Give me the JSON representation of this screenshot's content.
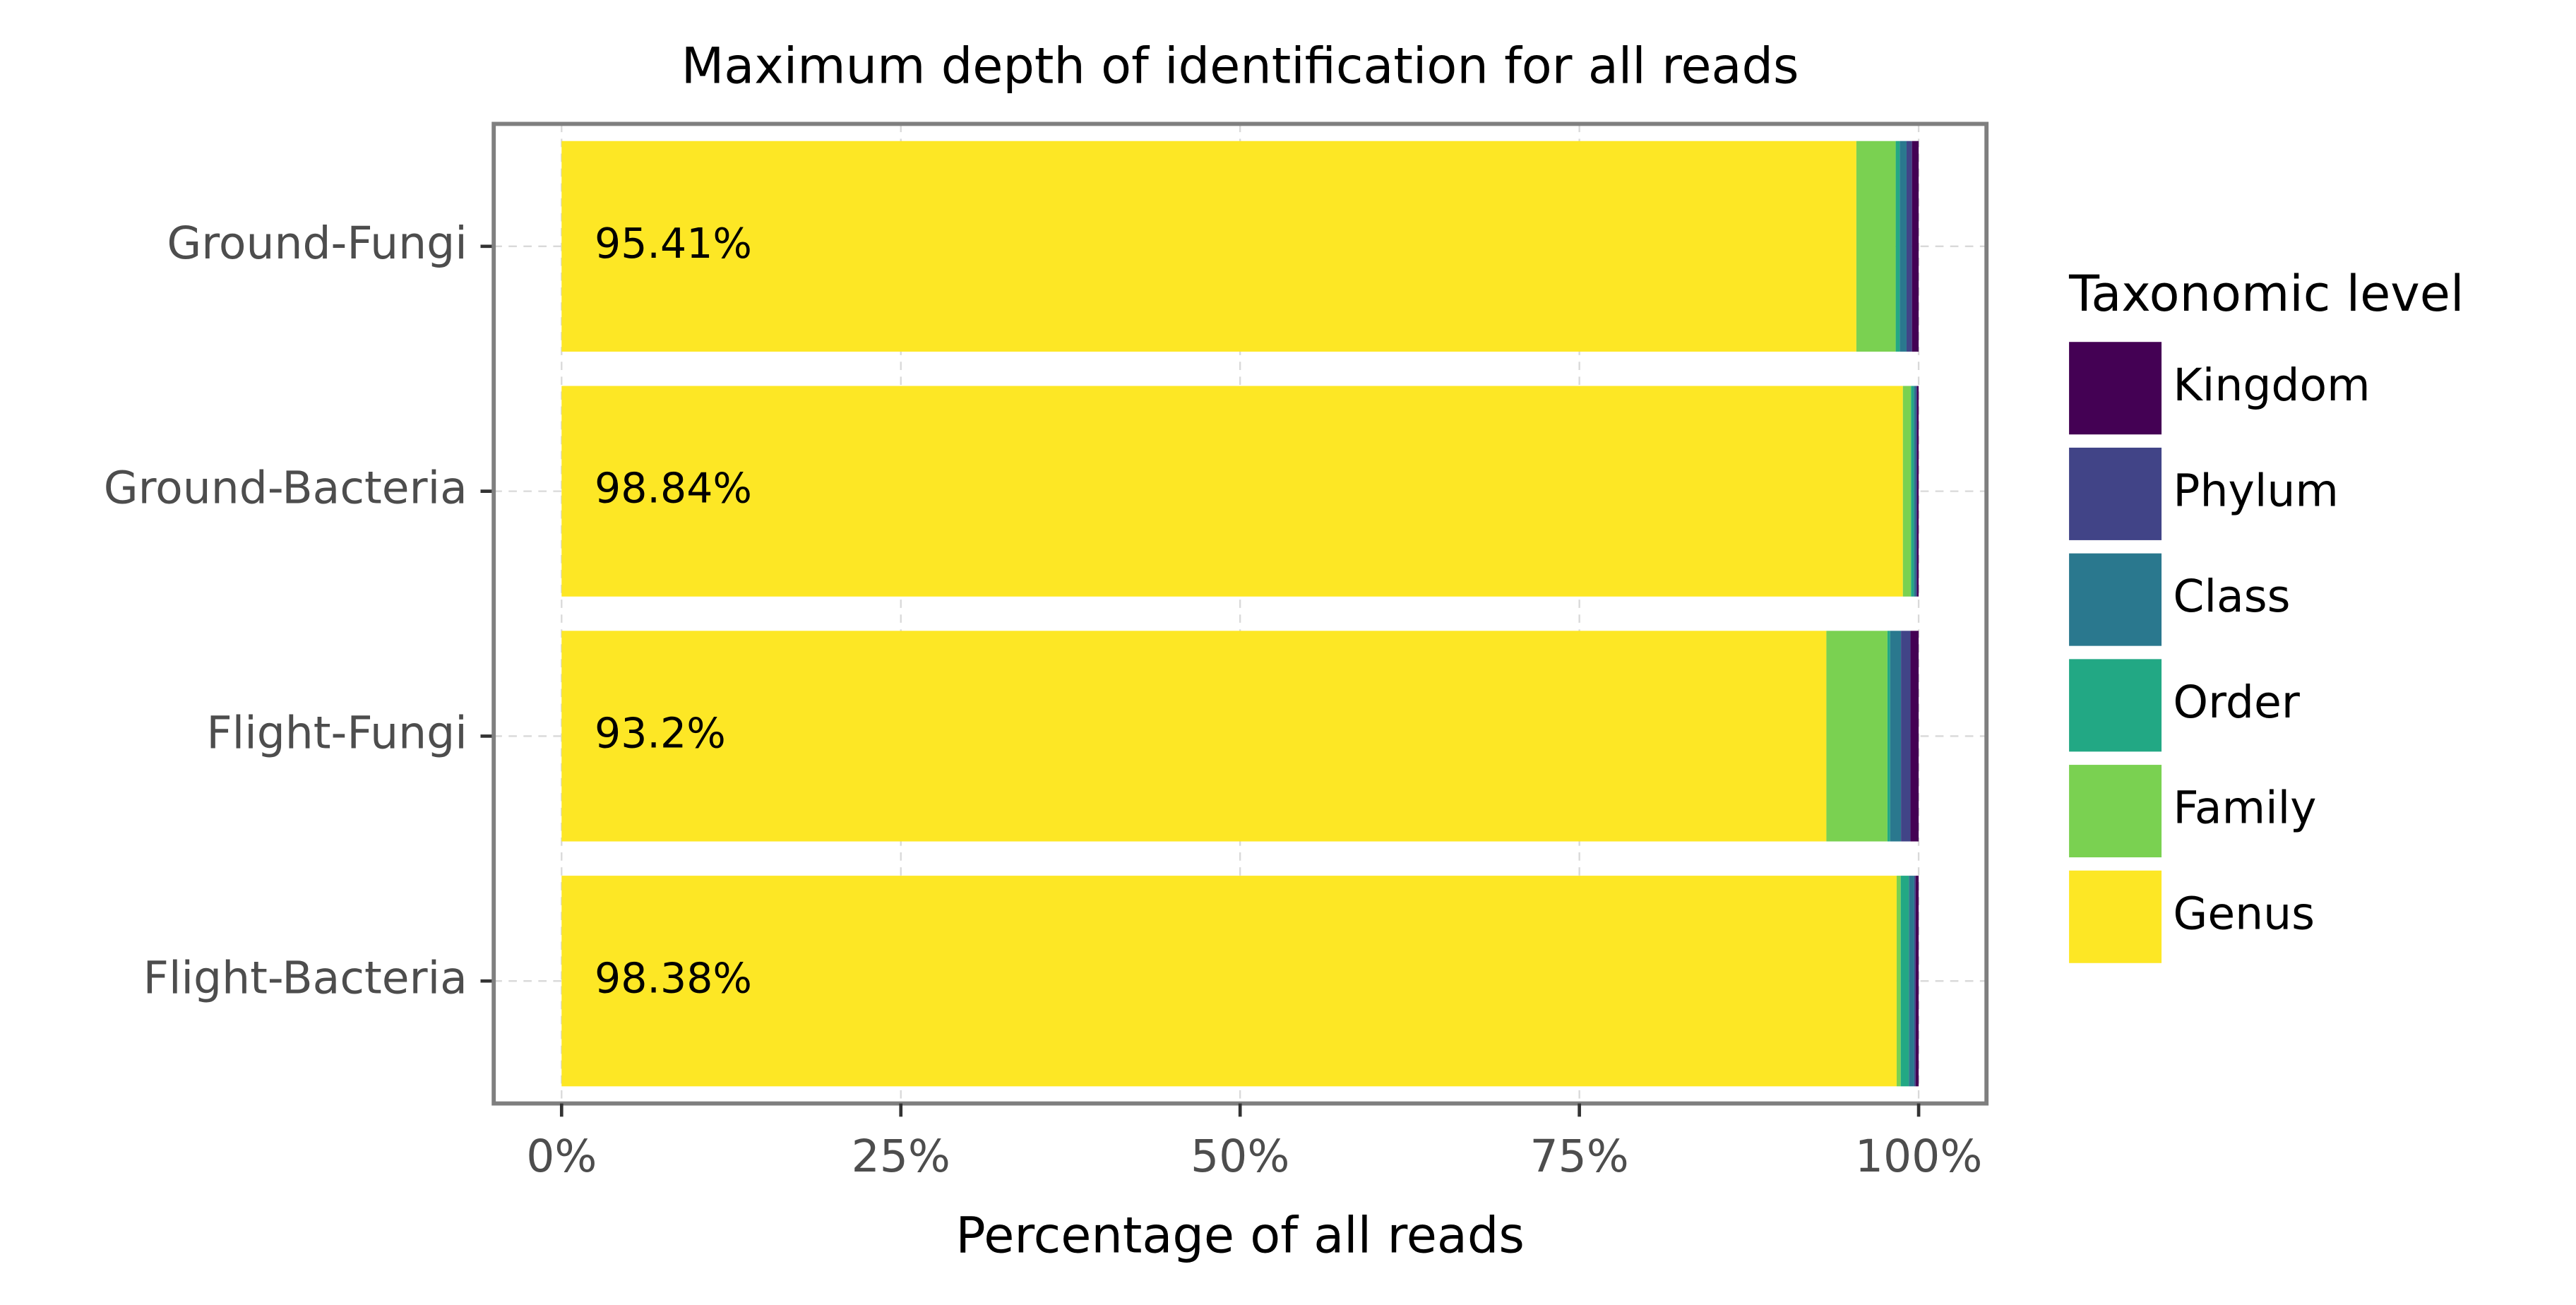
{
  "chart_data": {
    "type": "stacked-bar-horizontal",
    "title": "Maximum depth of identification for all reads",
    "x_label": "Percentage of all reads",
    "legend_title": "Taxonomic level",
    "categories": [
      "Ground-Fungi",
      "Ground-Bacteria",
      "Flight-Fungi",
      "Flight-Bacteria"
    ],
    "series": [
      {
        "name": "Genus",
        "color": "#fde725",
        "values": [
          95.41,
          98.84,
          93.2,
          98.38
        ],
        "value_labels": [
          "95.41%",
          "98.84%",
          "93.2%",
          "98.38%"
        ]
      },
      {
        "name": "Family",
        "color": "#7ad151",
        "values": [
          2.9,
          0.6,
          4.5,
          0.3
        ]
      },
      {
        "name": "Order",
        "color": "#22a884",
        "values": [
          0.3,
          0.2,
          0.2,
          0.6
        ]
      },
      {
        "name": "Class",
        "color": "#2a788e",
        "values": [
          0.5,
          0.15,
          0.8,
          0.4
        ]
      },
      {
        "name": "Phylum",
        "color": "#414487",
        "values": [
          0.4,
          0.1,
          0.7,
          0.1
        ]
      },
      {
        "name": "Kingdom",
        "color": "#440154",
        "values": [
          0.49,
          0.11,
          0.6,
          0.22
        ]
      }
    ],
    "xlim": [
      -5,
      105
    ],
    "xticks": [
      {
        "value": 0,
        "label": "0%"
      },
      {
        "value": 25,
        "label": "25%"
      },
      {
        "value": 50,
        "label": "50%"
      },
      {
        "value": 75,
        "label": "75%"
      },
      {
        "value": 100,
        "label": "100%"
      }
    ],
    "grid": true,
    "legend_position": "right"
  }
}
